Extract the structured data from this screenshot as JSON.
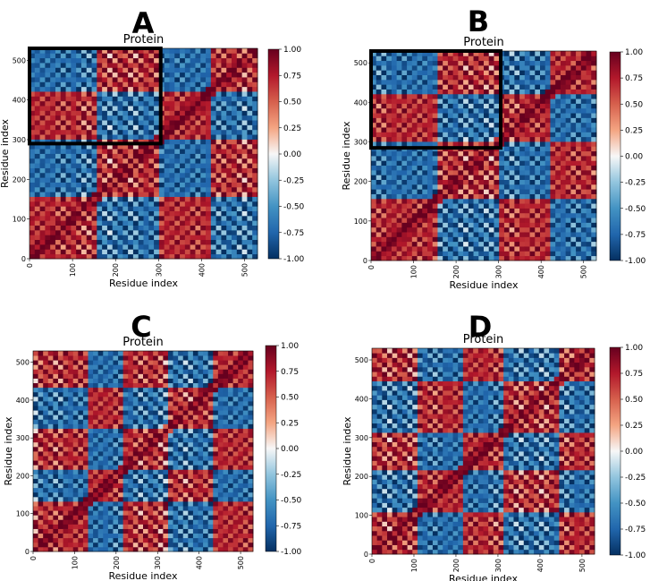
{
  "chart_data": [
    {
      "panel": "A",
      "type": "heatmap",
      "title": "Protein",
      "xlabel": "Residue index",
      "ylabel": "Residue index",
      "xlim": [
        0,
        530
      ],
      "ylim": [
        0,
        530
      ],
      "xticks": [
        0,
        100,
        200,
        300,
        400,
        500
      ],
      "yticks": [
        0,
        100,
        200,
        300,
        400,
        500
      ],
      "colorbar": {
        "min": -1.0,
        "max": 1.0,
        "colormap": "RdBu_r",
        "ticks": [
          "1.00",
          "0.75",
          "0.50",
          "0.25",
          "0.00",
          "-0.25",
          "-0.50",
          "-0.75",
          "-1.00"
        ]
      },
      "domain_boundaries": [
        160,
        305,
        420
      ],
      "highlight_region": {
        "x": [
          0,
          305
        ],
        "y": [
          290,
          530
        ]
      },
      "colors": {
        "positive": "#67001f",
        "negative": "#053061",
        "zero": "#f7f7f7"
      }
    },
    {
      "panel": "B",
      "type": "heatmap",
      "title": "Protein",
      "xlabel": "Residue index",
      "ylabel": "Residue index",
      "xlim": [
        0,
        530
      ],
      "ylim": [
        0,
        530
      ],
      "xticks": [
        0,
        100,
        200,
        300,
        400,
        500
      ],
      "yticks": [
        0,
        100,
        200,
        300,
        400,
        500
      ],
      "colorbar": {
        "min": -1.0,
        "max": 1.0,
        "colormap": "RdBu_r",
        "ticks": [
          "1.00",
          "0.75",
          "0.50",
          "0.25",
          "0.00",
          "-0.25",
          "-0.50",
          "-0.75",
          "-1.00"
        ]
      },
      "domain_boundaries": [
        160,
        305,
        420
      ],
      "highlight_region": {
        "x": [
          0,
          305
        ],
        "y": [
          285,
          530
        ]
      },
      "colors": {
        "positive": "#67001f",
        "negative": "#053061",
        "zero": "#f7f7f7"
      }
    },
    {
      "panel": "C",
      "type": "heatmap",
      "title": "Protein",
      "xlabel": "Residue index",
      "ylabel": "Residue index",
      "xlim": [
        0,
        530
      ],
      "ylim": [
        0,
        530
      ],
      "xticks": [
        0,
        100,
        200,
        300,
        400,
        500
      ],
      "yticks": [
        0,
        100,
        200,
        300,
        400,
        500
      ],
      "colorbar": {
        "min": -1.0,
        "max": 1.0,
        "colormap": "RdBu_r",
        "ticks": [
          "1.00",
          "0.75",
          "0.50",
          "0.25",
          "0.00",
          "-0.25",
          "-0.50",
          "-0.75",
          "-1.00"
        ]
      },
      "domain_boundaries": [
        130,
        215,
        330,
        430
      ],
      "colors": {
        "positive": "#67001f",
        "negative": "#053061",
        "zero": "#f7f7f7"
      }
    },
    {
      "panel": "D",
      "type": "heatmap",
      "title": "Protein",
      "xlabel": "Residue index",
      "ylabel": "Residue index",
      "xlim": [
        0,
        530
      ],
      "ylim": [
        0,
        530
      ],
      "xticks": [
        0,
        100,
        200,
        300,
        400,
        500
      ],
      "yticks": [
        0,
        100,
        200,
        300,
        400,
        500
      ],
      "colorbar": {
        "min": -1.0,
        "max": 1.0,
        "colormap": "RdBu_r",
        "ticks": [
          "1.00",
          "0.75",
          "0.50",
          "0.25",
          "0.00",
          "-0.25",
          "-0.50",
          "-0.75",
          "-1.00"
        ]
      },
      "domain_boundaries": [
        110,
        220,
        310,
        440
      ],
      "colors": {
        "positive": "#67001f",
        "negative": "#053061",
        "zero": "#f7f7f7"
      }
    }
  ]
}
